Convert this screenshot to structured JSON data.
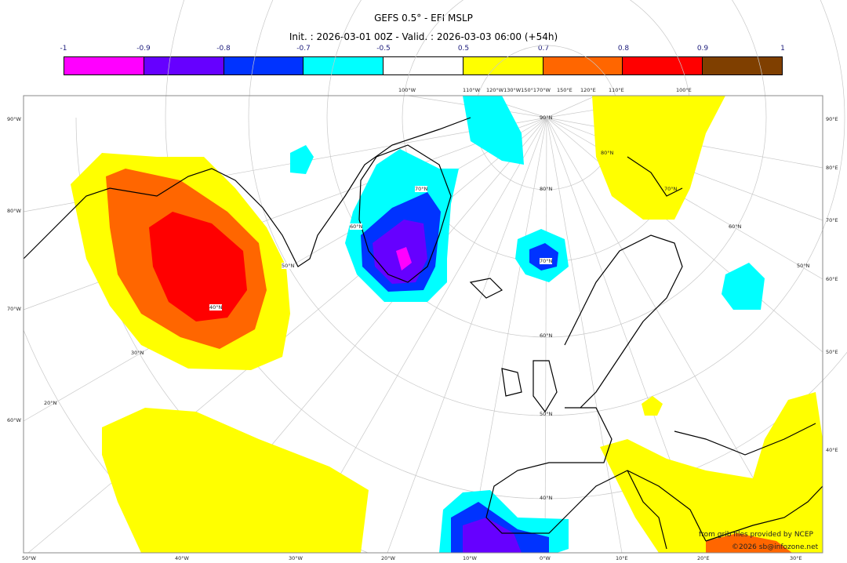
{
  "title": "GEFS 0.5° - EFI MSLP",
  "subtitle": "Init. : 2026-03-01 00Z - Valid. : 2026-03-03 06:00 (+54h)",
  "colorbar": {
    "labels": [
      "-1",
      "-0.9",
      "-0.8",
      "-0.7",
      "-0.5",
      "0.5",
      "0.7",
      "0.8",
      "0.9",
      "1"
    ],
    "colors": [
      "#ff00ff",
      "#6600ff",
      "#0033ff",
      "#00ffff",
      "#ffffff",
      "#ffff00",
      "#ff6600",
      "#ff0000",
      "#7f3f00"
    ]
  },
  "map": {
    "left_labels": [
      "90°W",
      "80°W",
      "70°W",
      "60°W"
    ],
    "right_labels": [
      "90°E",
      "80°E",
      "70°E",
      "60°E",
      "50°E",
      "40°E"
    ],
    "bottom_labels": [
      "50°W",
      "40°W",
      "30°W",
      "20°W",
      "10°W",
      "0°W",
      "10°E",
      "20°E",
      "30°E"
    ],
    "top_labels": [
      "100°W",
      "110°W",
      "120°W130°W150°170°W",
      "150°E",
      "120°E",
      "110°E",
      "100°E"
    ],
    "lat_labels": [
      "90°N",
      "80°N",
      "70°N",
      "60°N",
      "50°N",
      "40°N",
      "70°N",
      "60°N",
      "50°N",
      "40°N",
      "30°N",
      "20°N",
      "80°N",
      "70°N",
      "60°N",
      "50°N"
    ]
  },
  "credits": {
    "source": "from grib files provided by NCEP",
    "copyright": "©2026 sb@infozone.net"
  }
}
